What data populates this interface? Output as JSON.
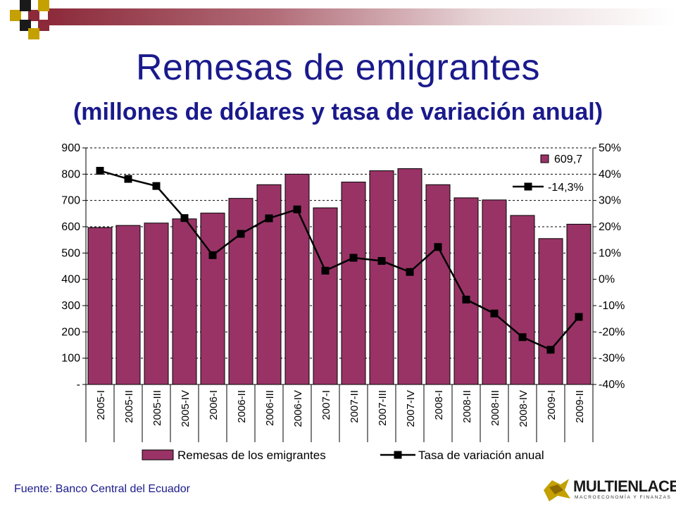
{
  "slide": {
    "title": "Remesas de emigrantes",
    "subtitle": "(millones de dólares y tasa de variación anual)",
    "source": "Fuente: Banco Central del Ecuador",
    "logo": {
      "name": "MULTIENLACE",
      "tagline": "MACROECONOMÍA Y FINANZAS"
    },
    "colors": {
      "band": "#8c2a3a",
      "title": "#1a1a8c",
      "bar": "#993366",
      "line": "#000000"
    }
  },
  "chart_data": {
    "type": "bar",
    "categories": [
      "2005-I",
      "2005-II",
      "2005-III",
      "2005-IV",
      "2006-I",
      "2006-II",
      "2006-III",
      "2006-IV",
      "2007-I",
      "2007-II",
      "2007-III",
      "2007-IV",
      "2008-I",
      "2008-II",
      "2008-III",
      "2008-IV",
      "2009-I",
      "2009-II"
    ],
    "left_axis": {
      "ylim": [
        0,
        900
      ],
      "ticks": [
        "-",
        "100",
        "200",
        "300",
        "400",
        "500",
        "600",
        "700",
        "800",
        "900"
      ]
    },
    "right_axis": {
      "ylim": [
        -40,
        50
      ],
      "ticks": [
        "-40%",
        "-30%",
        "-20%",
        "-10%",
        "0%",
        "10%",
        "20%",
        "30%",
        "40%",
        "50%"
      ]
    },
    "series": [
      {
        "name": "Remesas de los emigrantes",
        "type": "bar",
        "axis": "left",
        "values": [
          597,
          605,
          614,
          630,
          652,
          708,
          760,
          800,
          672,
          770,
          813,
          821,
          760,
          710,
          702,
          643,
          555,
          609.7
        ]
      },
      {
        "name": "Tasa de variación anual",
        "type": "line",
        "axis": "right",
        "values": [
          41.3,
          38.2,
          35.5,
          23.3,
          9.2,
          17.3,
          23.2,
          26.6,
          3.3,
          8.2,
          7.0,
          2.8,
          12.3,
          -7.7,
          -13.0,
          -22.0,
          -26.8,
          -14.3
        ]
      }
    ],
    "data_labels": {
      "bar_last": "609,7",
      "line_last": "-14,3%"
    },
    "grid": "horizontal dashed",
    "legend_position": "bottom"
  }
}
